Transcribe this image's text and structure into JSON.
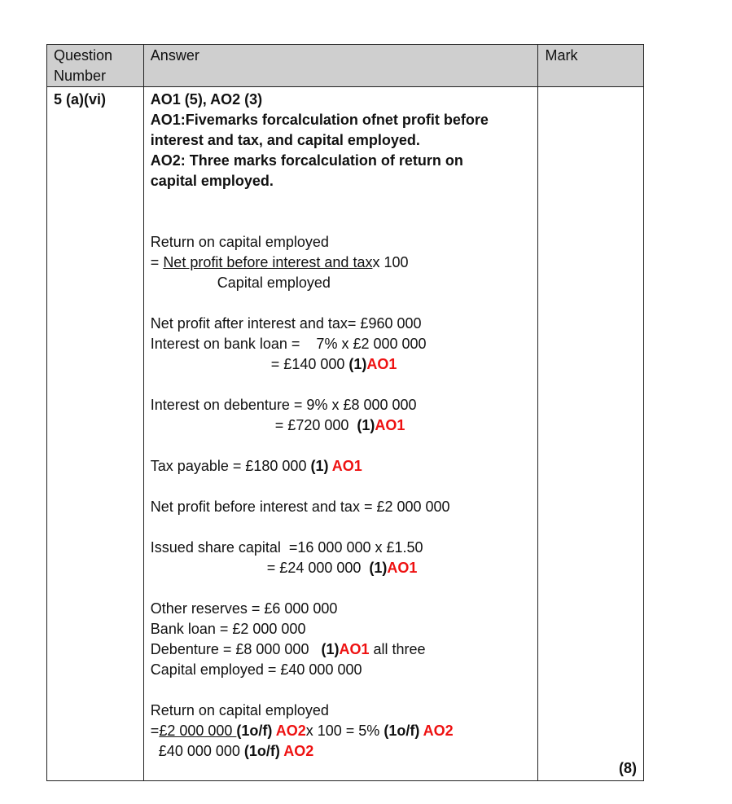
{
  "header": {
    "question": "Question\nNumber",
    "question_line1": "Question",
    "question_line2": "Number",
    "answer": "Answer",
    "mark": "Mark"
  },
  "row": {
    "question_number": "5 (a)(vi)",
    "total_mark": "(8)",
    "answer_lines": [
      [
        {
          "t": "AO1 (5), AO2 (3)",
          "s": "b"
        }
      ],
      [
        {
          "t": "AO1:Fivemarks forcalculation ofnet profit before",
          "s": "b"
        }
      ],
      [
        {
          "t": "interest and tax, and capital employed.",
          "s": "b"
        }
      ],
      [
        {
          "t": "AO2: Three marks forcalculation of return on",
          "s": "b"
        }
      ],
      [
        {
          "t": "capital employed.",
          "s": "b"
        }
      ],
      [],
      [],
      [
        {
          "t": "Return on capital employed",
          "s": "n"
        }
      ],
      [
        {
          "t": "= ",
          "s": "n"
        },
        {
          "t": "Net profit before interest and tax",
          "s": "u"
        },
        {
          "t": "x 100",
          "s": "n"
        }
      ],
      [
        {
          "t": "Capital employed",
          "s": "n"
        }
      ],
      [],
      [
        {
          "t": "Net profit after interest and tax= £960 000",
          "s": "n"
        }
      ],
      [
        {
          "t": "Interest on bank loan =    7% x £2 000 000",
          "s": "n"
        }
      ],
      [
        {
          "t": "= £140 000 ",
          "s": "n"
        },
        {
          "t": "(1)",
          "s": "b"
        },
        {
          "t": "AO1",
          "s": "r"
        }
      ],
      [],
      [
        {
          "t": "Interest on debenture = 9% x £8 000 000",
          "s": "n"
        }
      ],
      [
        {
          "t": "= £720 000  ",
          "s": "n"
        },
        {
          "t": "(1)",
          "s": "b"
        },
        {
          "t": "AO1",
          "s": "r"
        }
      ],
      [],
      [
        {
          "t": "Tax payable = £180 000 ",
          "s": "n"
        },
        {
          "t": "(1) ",
          "s": "b"
        },
        {
          "t": "AO1",
          "s": "r"
        }
      ],
      [],
      [
        {
          "t": "Net profit before interest and tax = £2 000 000",
          "s": "n"
        }
      ],
      [],
      [
        {
          "t": "Issued share capital  =16 000 000 x £1.50",
          "s": "n"
        }
      ],
      [
        {
          "t": "= £24 000 000  ",
          "s": "n"
        },
        {
          "t": "(1)",
          "s": "b"
        },
        {
          "t": "AO1",
          "s": "r"
        }
      ],
      [],
      [
        {
          "t": "Other reserves = £6 000 000",
          "s": "n"
        }
      ],
      [
        {
          "t": "Bank loan = £2 000 000",
          "s": "n"
        }
      ],
      [
        {
          "t": "Debenture = £8 000 000   ",
          "s": "n"
        },
        {
          "t": "(1)",
          "s": "b"
        },
        {
          "t": "AO1",
          "s": "r"
        },
        {
          "t": " all three",
          "s": "n"
        }
      ],
      [
        {
          "t": "Capital employed = £40 000 000",
          "s": "n"
        }
      ],
      [],
      [
        {
          "t": "Return on capital employed",
          "s": "n"
        }
      ],
      [
        {
          "t": "=",
          "s": "n"
        },
        {
          "t": "£2 000 000 ",
          "s": "u"
        },
        {
          "t": "(1o/f) ",
          "s": "b"
        },
        {
          "t": "AO2",
          "s": "r"
        },
        {
          "t": "x 100 = 5% ",
          "s": "n"
        },
        {
          "t": "(1o/f) ",
          "s": "b"
        },
        {
          "t": "AO2",
          "s": "r"
        }
      ],
      [
        {
          "t": "£40 000 000 ",
          "s": "n"
        },
        {
          "t": "(1o/f) ",
          "s": "b"
        },
        {
          "t": "AO2",
          "s": "r"
        }
      ]
    ]
  },
  "colors": {
    "header_bg": "#cfcfcf",
    "ao_red": "#ee1111"
  }
}
